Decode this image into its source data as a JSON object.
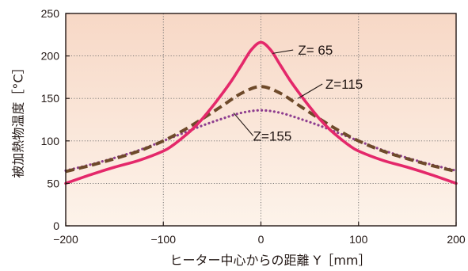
{
  "chart_data": {
    "type": "line",
    "xlabel": "ヒーター中心からの距離 Y［mm］",
    "ylabel": "被加熱物温度［°C］",
    "xlim": [
      -200,
      200
    ],
    "ylim": [
      0,
      250
    ],
    "x_ticks": [
      -200,
      -100,
      0,
      100,
      200
    ],
    "y_ticks": [
      0,
      50,
      100,
      150,
      200,
      250
    ],
    "x_tick_labels": [
      "−200",
      "−100",
      "0",
      "100",
      "200"
    ],
    "y_tick_labels": [
      "0",
      "50",
      "100",
      "150",
      "200",
      "250"
    ],
    "grid": true,
    "background": "peach gradient",
    "series": [
      {
        "name": "Z= 65",
        "color": "#e4286a",
        "style": "solid",
        "x": [
          -200,
          -175,
          -150,
          -125,
          -100,
          -90,
          -80,
          -70,
          -60,
          -50,
          -40,
          -30,
          -20,
          -10,
          0,
          10,
          20,
          30,
          40,
          50,
          60,
          70,
          80,
          90,
          100,
          125,
          150,
          175,
          200
        ],
        "y": [
          50,
          60,
          69,
          77,
          88,
          95,
          104,
          114,
          126,
          140,
          155,
          171,
          189,
          207,
          216,
          207,
          189,
          171,
          155,
          140,
          126,
          114,
          104,
          95,
          88,
          77,
          69,
          60,
          50
        ]
      },
      {
        "name": "Z=115",
        "color": "#6e4a2a",
        "style": "dashed",
        "x": [
          -200,
          -175,
          -150,
          -125,
          -100,
          -80,
          -60,
          -40,
          -20,
          0,
          20,
          40,
          60,
          80,
          100,
          125,
          150,
          175,
          200
        ],
        "y": [
          64,
          71,
          79,
          88,
          100,
          112,
          126,
          141,
          156,
          164,
          156,
          141,
          126,
          112,
          100,
          88,
          79,
          71,
          64
        ]
      },
      {
        "name": "Z=155",
        "color": "#8e3d8f",
        "style": "dotted",
        "x": [
          -200,
          -175,
          -150,
          -125,
          -100,
          -80,
          -60,
          -40,
          -20,
          0,
          20,
          40,
          60,
          80,
          100,
          125,
          150,
          175,
          200
        ],
        "y": [
          65,
          72,
          80,
          89,
          100,
          109,
          118,
          126,
          133,
          136,
          133,
          126,
          118,
          109,
          100,
          89,
          80,
          72,
          65
        ]
      }
    ]
  }
}
